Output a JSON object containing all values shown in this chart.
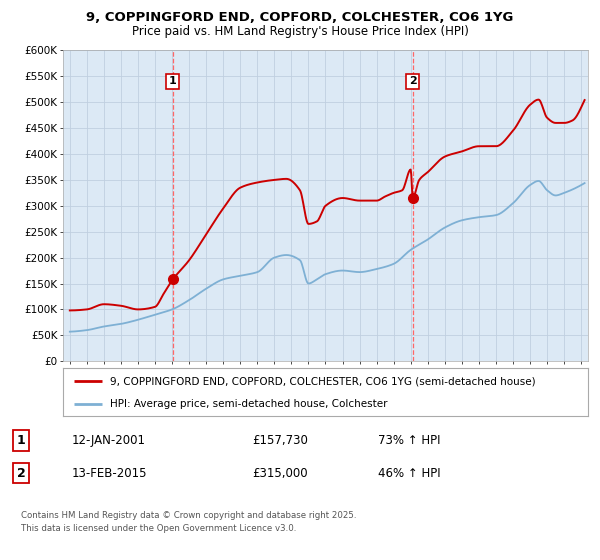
{
  "title": "9, COPPINGFORD END, COPFORD, COLCHESTER, CO6 1YG",
  "subtitle": "Price paid vs. HM Land Registry's House Price Index (HPI)",
  "ylabel_ticks": [
    "£0",
    "£50K",
    "£100K",
    "£150K",
    "£200K",
    "£250K",
    "£300K",
    "£350K",
    "£400K",
    "£450K",
    "£500K",
    "£550K",
    "£600K"
  ],
  "ylim": [
    0,
    600000
  ],
  "xlim_start": 1994.6,
  "xlim_end": 2025.4,
  "xticks": [
    1995,
    1996,
    1997,
    1998,
    1999,
    2000,
    2001,
    2002,
    2003,
    2004,
    2005,
    2006,
    2007,
    2008,
    2009,
    2010,
    2011,
    2012,
    2013,
    2014,
    2015,
    2016,
    2017,
    2018,
    2019,
    2020,
    2021,
    2022,
    2023,
    2024,
    2025
  ],
  "red_color": "#cc0000",
  "blue_color": "#7eb0d4",
  "vline_color": "#ff6666",
  "chart_bg": "#dce9f5",
  "marker1_x": 2001.04,
  "marker1_y": 157730,
  "marker2_x": 2015.12,
  "marker2_y": 315000,
  "vline1_x": 2001.04,
  "vline2_x": 2015.12,
  "legend_line1": "9, COPPINGFORD END, COPFORD, COLCHESTER, CO6 1YG (semi-detached house)",
  "legend_line2": "HPI: Average price, semi-detached house, Colchester",
  "table_row1": [
    "1",
    "12-JAN-2001",
    "£157,730",
    "73% ↑ HPI"
  ],
  "table_row2": [
    "2",
    "13-FEB-2015",
    "£315,000",
    "46% ↑ HPI"
  ],
  "footer": "Contains HM Land Registry data © Crown copyright and database right 2025.\nThis data is licensed under the Open Government Licence v3.0.",
  "background_color": "#ffffff",
  "grid_color": "#c0cfe0",
  "red_pts_x": [
    1995.0,
    1996.0,
    1997.0,
    1998.0,
    1999.0,
    2000.0,
    2000.5,
    2001.04,
    2002.0,
    2003.0,
    2004.0,
    2005.0,
    2006.0,
    2007.0,
    2007.7,
    2008.5,
    2009.0,
    2009.5,
    2010.0,
    2011.0,
    2012.0,
    2013.0,
    2013.5,
    2014.0,
    2014.5,
    2015.0,
    2015.12,
    2015.5,
    2016.0,
    2017.0,
    2018.0,
    2019.0,
    2020.0,
    2021.0,
    2022.0,
    2022.5,
    2023.0,
    2023.5,
    2024.0,
    2024.5,
    2025.0
  ],
  "red_pts_y": [
    98000,
    100000,
    110000,
    107000,
    100000,
    105000,
    130000,
    157730,
    195000,
    245000,
    295000,
    335000,
    345000,
    350000,
    352000,
    330000,
    265000,
    270000,
    300000,
    315000,
    310000,
    310000,
    318000,
    325000,
    330000,
    370000,
    315000,
    350000,
    365000,
    395000,
    405000,
    415000,
    415000,
    445000,
    495000,
    505000,
    470000,
    460000,
    460000,
    465000,
    490000
  ],
  "blue_pts_x": [
    1995.0,
    1996.0,
    1997.0,
    1998.0,
    1999.0,
    2000.0,
    2001.0,
    2002.0,
    2003.0,
    2004.0,
    2005.0,
    2006.0,
    2007.0,
    2007.7,
    2008.5,
    2009.0,
    2009.5,
    2010.0,
    2011.0,
    2012.0,
    2013.0,
    2014.0,
    2015.0,
    2016.0,
    2017.0,
    2018.0,
    2019.0,
    2020.0,
    2021.0,
    2022.0,
    2022.5,
    2023.0,
    2023.5,
    2024.0,
    2025.0
  ],
  "blue_pts_y": [
    57000,
    60000,
    67000,
    72000,
    80000,
    90000,
    100000,
    118000,
    140000,
    158000,
    165000,
    172000,
    200000,
    205000,
    195000,
    150000,
    158000,
    168000,
    175000,
    172000,
    178000,
    188000,
    215000,
    235000,
    258000,
    272000,
    278000,
    282000,
    305000,
    340000,
    348000,
    330000,
    320000,
    325000,
    340000
  ]
}
